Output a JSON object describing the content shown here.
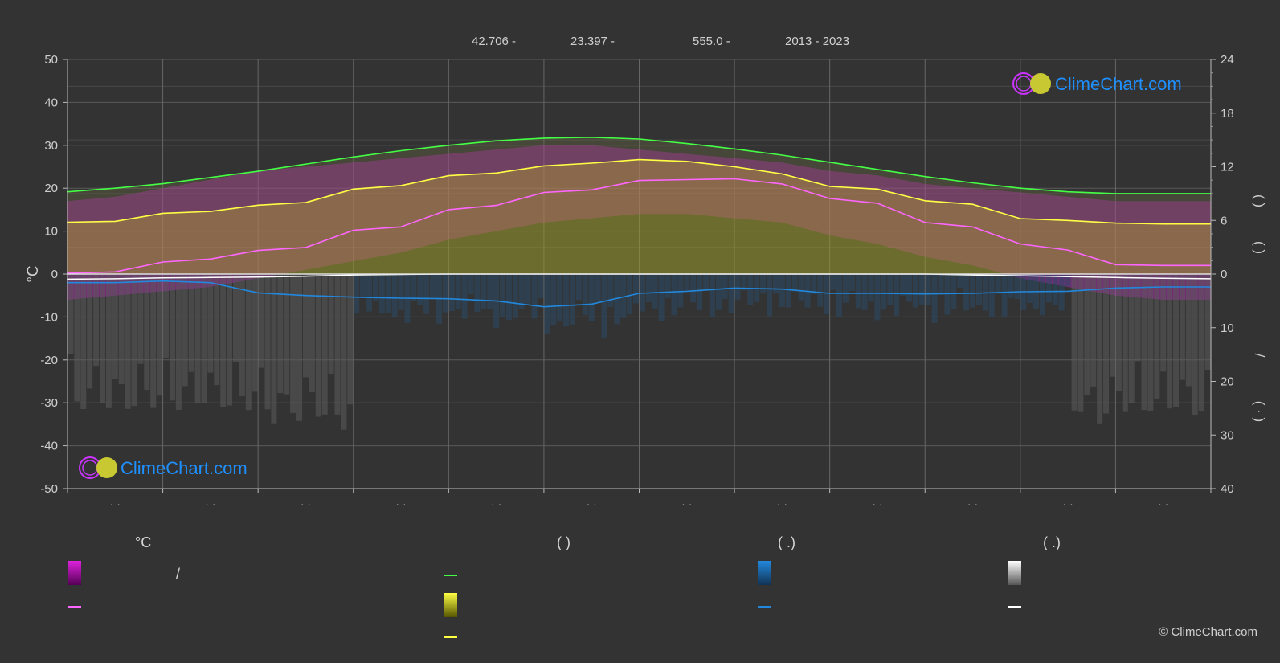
{
  "header": {
    "lat": "42.706 -",
    "lon": "23.397 -",
    "elev": "555.0 -",
    "years": "2013 - 2023"
  },
  "logo": {
    "text": "ClimeChart.com"
  },
  "copyright": "© ClimeChart.com",
  "colors": {
    "background": "#333333",
    "daylight": "#44ff44",
    "sunshine": "#ffff44",
    "maxmin_fill": "#dd22dd",
    "mean_temp": "#ff66ff",
    "rain": "#2288dd",
    "snow": "#ffffff",
    "logo_blue": "#1e90ff"
  },
  "legend": {
    "heads": [
      "°C",
      "(          )",
      "(   .)",
      "(   .)"
    ],
    "slash_label": "/"
  },
  "chart_data": {
    "type": "area",
    "y_left": {
      "label": "°C",
      "ticks": [
        "50",
        "40",
        "30",
        "20",
        "10",
        "0",
        "-10",
        "-20",
        "-30",
        "-40",
        "-50"
      ],
      "ylim": [
        -50,
        50
      ]
    },
    "y_right_top": {
      "ticks": [
        "24",
        "18",
        "12",
        "6",
        "0"
      ],
      "ylim": [
        0,
        24
      ]
    },
    "y_right_bottom": {
      "ticks": [
        "0",
        "10",
        "20",
        "30",
        "40"
      ],
      "ylim": [
        0,
        40
      ]
    },
    "right_label_top": "(   )",
    "right_label_top2": "(   )",
    "right_label_mid": "/",
    "right_label_bot": "( ·  )",
    "month_ticks": [
      "· ·",
      "· ·",
      "· ·",
      "· ·",
      "· ·",
      "· ·",
      "· ·",
      "· ·",
      "· ·",
      "· ·",
      "· ·",
      "· ·"
    ],
    "grid": true,
    "x": [
      0,
      0.5,
      1,
      1.5,
      2,
      2.5,
      3,
      3.5,
      4,
      4.5,
      5,
      5.5,
      6,
      6.5,
      7,
      7.5,
      8,
      8.5,
      9,
      9.5,
      10,
      10.5,
      11,
      11.5,
      12
    ],
    "series": [
      {
        "key": "daylight",
        "values": [
          9.2,
          9.6,
          10.1,
          10.8,
          11.5,
          12.3,
          13.1,
          13.8,
          14.4,
          14.9,
          15.2,
          15.3,
          15.1,
          14.6,
          14.0,
          13.3,
          12.5,
          11.7,
          10.9,
          10.2,
          9.6,
          9.2,
          9.0,
          9.0,
          9.0
        ]
      },
      {
        "key": "sunshine",
        "values": [
          5.8,
          5.9,
          6.8,
          7.0,
          7.7,
          8.0,
          9.5,
          9.9,
          11.0,
          11.3,
          12.1,
          12.4,
          12.8,
          12.6,
          12.0,
          11.2,
          9.8,
          9.5,
          8.2,
          7.8,
          6.2,
          6.0,
          5.7,
          5.6,
          5.6
        ]
      },
      {
        "key": "mean_temp",
        "values": [
          0.2,
          0.5,
          2.8,
          3.5,
          5.5,
          6.2,
          10.2,
          11.0,
          15.0,
          16.0,
          19.0,
          19.6,
          21.8,
          22.0,
          22.2,
          21.0,
          17.6,
          16.5,
          12.0,
          11.0,
          7.0,
          5.6,
          2.2,
          2.0,
          2.0
        ]
      },
      {
        "key": "rain",
        "values": [
          1.6,
          1.6,
          1.3,
          1.6,
          3.5,
          4.0,
          4.3,
          4.5,
          4.6,
          5.0,
          6.1,
          5.6,
          3.6,
          3.2,
          2.6,
          2.8,
          3.6,
          3.6,
          3.7,
          3.6,
          3.3,
          3.2,
          2.6,
          2.4,
          2.4
        ]
      },
      {
        "key": "snow",
        "values": [
          1.2,
          1.1,
          0.9,
          0.8,
          0.7,
          0.5,
          0.2,
          0.1,
          0,
          0,
          0,
          0,
          0,
          0,
          0,
          0,
          0,
          0,
          0,
          0.2,
          0.4,
          0.6,
          0.8,
          1.0,
          1.1
        ]
      },
      {
        "key": "temp_max",
        "values": [
          17,
          18,
          20,
          22,
          24,
          25,
          26,
          27,
          28,
          29,
          30,
          30,
          29,
          28,
          27,
          26,
          24,
          23,
          21,
          20,
          19,
          18,
          17,
          17,
          17
        ]
      },
      {
        "key": "temp_min",
        "values": [
          -6,
          -5,
          -4,
          -3,
          -1,
          1,
          3,
          5,
          8,
          10,
          12,
          13,
          14,
          14,
          13,
          12,
          9,
          7,
          4,
          2,
          -1,
          -3,
          -5,
          -6,
          -6
        ]
      }
    ]
  }
}
